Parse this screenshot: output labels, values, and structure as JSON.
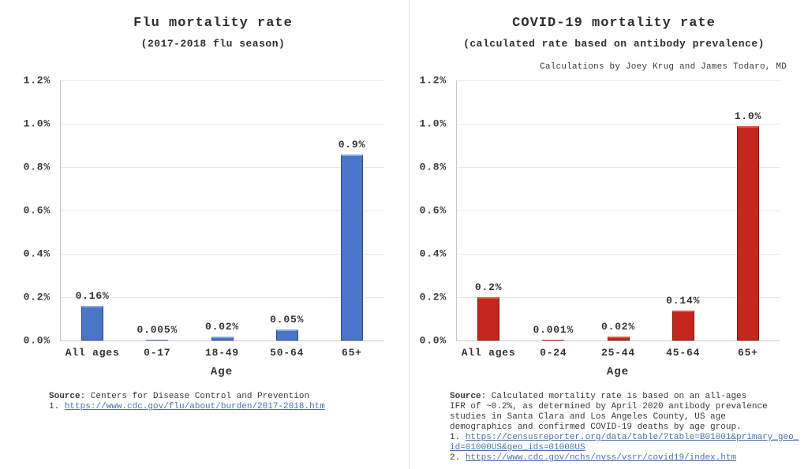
{
  "colors": {
    "flu_bar": "#4a75c8",
    "flu_bar_border": "#2d4c8c",
    "covid_bar": "#c4281c",
    "covid_bar_border": "#7e170e",
    "link": "#4a72a8",
    "gridline": "#e9e9e9"
  },
  "chart_data": [
    {
      "type": "bar",
      "title": "Flu mortality rate",
      "subtitle": "(2017-2018 flu season)",
      "annotation": "",
      "xlabel": "Age",
      "ylabel": "",
      "ylim": [
        0,
        1.2
      ],
      "grid": true,
      "legend": false,
      "yticks": [
        0,
        0.2,
        0.4,
        0.6,
        0.8,
        1.0,
        1.2
      ],
      "ytick_labels": [
        "0.0%",
        "0.2%",
        "0.4%",
        "0.6%",
        "0.8%",
        "1.0%",
        "1.2%"
      ],
      "categories": [
        "All ages",
        "0-17",
        "18-49",
        "50-64",
        "65+"
      ],
      "values": [
        0.16,
        0.005,
        0.02,
        0.05,
        0.86
      ],
      "value_labels": [
        "0.16%",
        "0.005%",
        "0.02%",
        "0.05%",
        "0.9%"
      ],
      "bar_color": "#4a75c8",
      "bar_border_color": "#2d4c8c",
      "bar_top_highlight": "#8aa8e0"
    },
    {
      "type": "bar",
      "title": "COVID-19 mortality rate",
      "subtitle": "(calculated rate based on antibody prevalence)",
      "annotation": "Calculations by Joey Krug and James Todaro, MD",
      "xlabel": "Age",
      "ylabel": "",
      "ylim": [
        0,
        1.2
      ],
      "grid": true,
      "legend": false,
      "yticks": [
        0,
        0.2,
        0.4,
        0.6,
        0.8,
        1.0,
        1.2
      ],
      "ytick_labels": [
        "0.0%",
        "0.2%",
        "0.4%",
        "0.6%",
        "0.8%",
        "1.0%",
        "1.2%"
      ],
      "categories": [
        "All ages",
        "0-24",
        "25-44",
        "45-64",
        "65+"
      ],
      "values": [
        0.2,
        0.001,
        0.02,
        0.14,
        0.99
      ],
      "value_labels": [
        "0.2%",
        "0.001%",
        "0.02%",
        "0.14%",
        "1.0%"
      ],
      "bar_color": "#c4281c",
      "bar_border_color": "#7e170e",
      "bar_top_highlight": "#da5a4b"
    }
  ],
  "footers": [
    {
      "lines": [
        [
          {
            "t": "Source",
            "bold": true
          },
          {
            "t": ": Centers for Disease Control and Prevention"
          }
        ],
        [
          {
            "t": "1. "
          },
          {
            "t": "https://www.cdc.gov/flu/about/burden/2017-2018.htm",
            "link": true
          }
        ]
      ]
    },
    {
      "lines": [
        [
          {
            "t": "Source",
            "bold": true
          },
          {
            "t": ": Calculated mortality rate is based on an all-ages"
          }
        ],
        [
          {
            "t": "IFR of ~0.2%, as determined by April 2020 antibody prevalence"
          }
        ],
        [
          {
            "t": "studies in Santa Clara and Los Angeles County, US age"
          }
        ],
        [
          {
            "t": "demographics and confirmed COVID-19 deaths by age group."
          }
        ],
        [
          {
            "t": "1. "
          },
          {
            "t": "https://censusreporter.org/data/table/?table=B01001&primary_geo_",
            "link": true
          }
        ],
        [
          {
            "t": "id=01000US&geo_ids=01000US",
            "link": true
          }
        ],
        [
          {
            "t": "2. "
          },
          {
            "t": "https://www.cdc.gov/nchs/nvss/vsrr/covid19/index.htm",
            "link": true
          }
        ]
      ]
    }
  ]
}
